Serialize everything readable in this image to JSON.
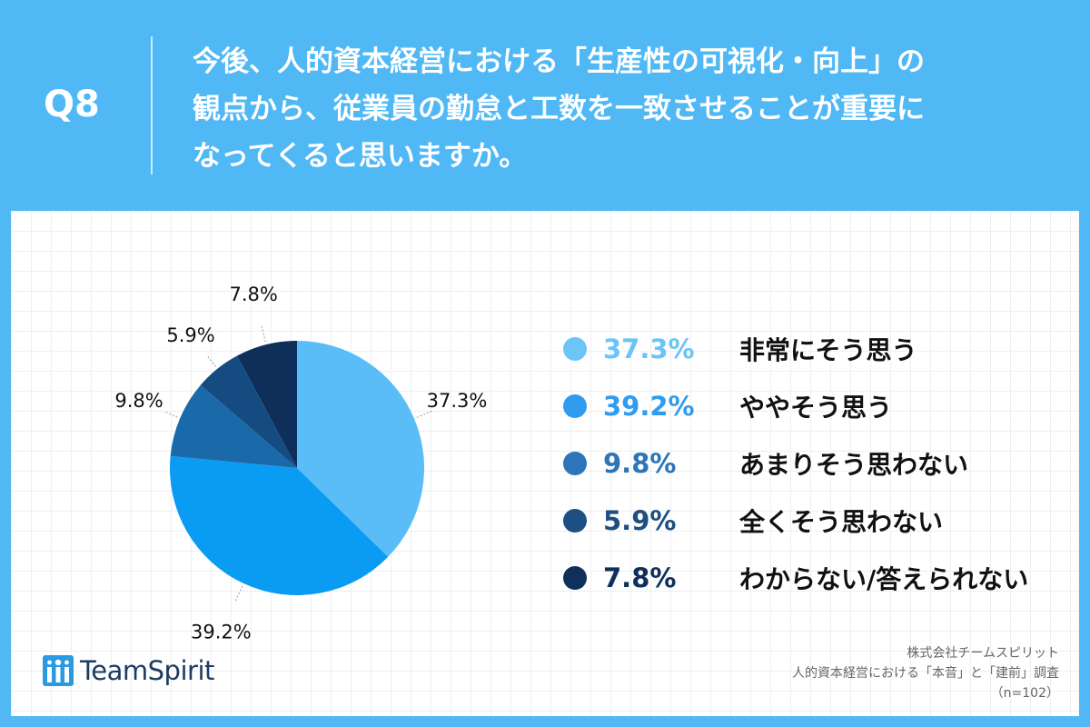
{
  "header": {
    "question_number": "Q8",
    "question_lines": [
      "今後、人的資本経営における「生産性の可視化・向上」の",
      "観点から、従業員の勤怠と工数を一致させることが重要に",
      "なってくると思いますか。"
    ]
  },
  "chart_data": {
    "type": "pie",
    "title": "今後、人的資本経営における「生産性の可視化・向上」の観点から、従業員の勤怠と工数を一致させることが重要になってくると思いますか。",
    "categories": [
      "非常にそう思う",
      "ややそう思う",
      "あまりそう思わない",
      "全くそう思わない",
      "わからない/答えられない"
    ],
    "values": [
      37.3,
      39.2,
      9.8,
      5.9,
      7.8
    ],
    "labels": [
      "37.3%",
      "39.2%",
      "9.8%",
      "5.9%",
      "7.8%"
    ],
    "colors": [
      "#5bbdf7",
      "#0a9cf2",
      "#1a6aaa",
      "#144c82",
      "#0e2f5a"
    ],
    "legend_position": "right"
  },
  "legend": {
    "items": [
      {
        "pct": "37.3%",
        "label": "非常にそう思う",
        "color": "#6cc4f7"
      },
      {
        "pct": "39.2%",
        "label": "ややそう思う",
        "color": "#2f9cf0"
      },
      {
        "pct": "9.8%",
        "label": "あまりそう思わない",
        "color": "#2d74b8"
      },
      {
        "pct": "5.9%",
        "label": "全くそう思わない",
        "color": "#1d4f82"
      },
      {
        "pct": "7.8%",
        "label": "わからない/答えられない",
        "color": "#0f305c"
      }
    ]
  },
  "logo": {
    "text": "TeamSpirit",
    "color": "#1d3b61"
  },
  "source": {
    "company": "株式会社チームスピリット",
    "survey": "人的資本経営における「本音」と「建前」調査",
    "sample": "（n=102）"
  }
}
